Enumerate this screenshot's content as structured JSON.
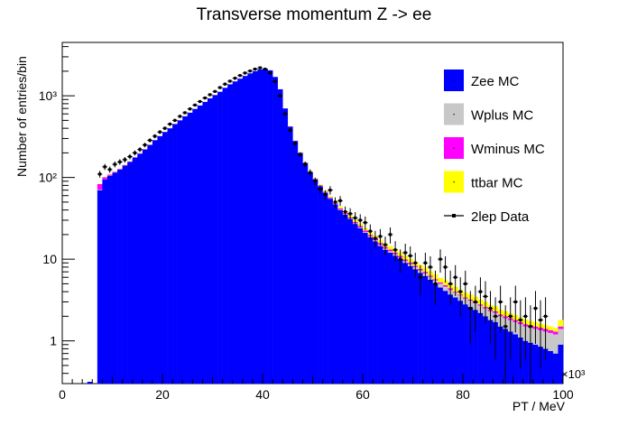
{
  "chart_data": {
    "type": "bar",
    "title": "Transverse momentum Z -> ee",
    "xlabel": "PT / MeV",
    "ylabel": "Number of entries/bin",
    "x_exponent": "×10³",
    "xlim": [
      0,
      100
    ],
    "ylim": [
      0.3,
      4500
    ],
    "y_scale": "log",
    "bin_width": 1,
    "x_ticks": [
      "0",
      "20",
      "40",
      "60",
      "80",
      "100"
    ],
    "y_ticks": [
      {
        "value": 1,
        "label": "1"
      },
      {
        "value": 10,
        "label": "10"
      },
      {
        "value": 100,
        "label": "10²"
      },
      {
        "value": 1000,
        "label": "10³"
      }
    ],
    "legend_position": "top-right",
    "series": [
      {
        "name": "Zee MC",
        "color": "#0000ff",
        "kind": "stacked-histogram"
      },
      {
        "name": "Wplus MC",
        "color": "#c8c8c8",
        "kind": "stacked-histogram"
      },
      {
        "name": "Wminus MC",
        "color": "#ff00ff",
        "kind": "stacked-histogram"
      },
      {
        "name": "ttbar MC",
        "color": "#ffff00",
        "kind": "stacked-histogram"
      },
      {
        "name": "2lep Data",
        "color": "#000000",
        "kind": "points-with-errors"
      }
    ],
    "bins_x": [
      7,
      8,
      9,
      10,
      11,
      12,
      13,
      14,
      15,
      16,
      17,
      18,
      19,
      20,
      21,
      22,
      23,
      24,
      25,
      26,
      27,
      28,
      29,
      30,
      31,
      32,
      33,
      34,
      35,
      36,
      37,
      38,
      39,
      40,
      41,
      42,
      43,
      44,
      45,
      46,
      47,
      48,
      49,
      50,
      51,
      52,
      53,
      54,
      55,
      56,
      57,
      58,
      59,
      60,
      61,
      62,
      63,
      64,
      65,
      66,
      67,
      68,
      69,
      70,
      71,
      72,
      73,
      74,
      75,
      76,
      77,
      78,
      79,
      80,
      81,
      82,
      83,
      84,
      85,
      86,
      87,
      88,
      89,
      90,
      91,
      92,
      93,
      94,
      95,
      96,
      97,
      98,
      99
    ],
    "zee_mc": [
      70,
      95,
      105,
      115,
      125,
      140,
      155,
      175,
      195,
      220,
      250,
      285,
      320,
      360,
      400,
      450,
      500,
      560,
      620,
      690,
      760,
      840,
      930,
      1020,
      1120,
      1250,
      1380,
      1500,
      1620,
      1750,
      1880,
      2000,
      2100,
      2150,
      2050,
      1700,
      1200,
      700,
      420,
      280,
      200,
      150,
      115,
      95,
      78,
      65,
      55,
      47,
      40,
      35,
      31,
      27,
      24,
      21,
      18.5,
      16.5,
      14.5,
      13,
      12,
      11,
      10,
      9,
      8.2,
      7.5,
      6.8,
      6.2,
      5.6,
      5,
      4.5,
      4.1,
      3.7,
      3.4,
      3.1,
      2.8,
      2.6,
      2.4,
      2.2,
      2,
      1.8,
      1.7,
      1.5,
      1.4,
      1.3,
      1.2,
      1.1,
      1,
      0.95,
      0.9,
      0.85,
      0.8,
      0.75,
      0.7,
      0.9
    ],
    "wplus_mc": [
      1,
      0.5,
      0.5,
      0.5,
      0.5,
      0.5,
      0.5,
      0.5,
      0.5,
      0.5,
      0.5,
      0.5,
      0.5,
      0.5,
      0.5,
      0.5,
      0.5,
      0.5,
      0.5,
      0.5,
      0.5,
      0.5,
      0.5,
      0.5,
      0.5,
      0.5,
      0.5,
      0.5,
      0.5,
      0.5,
      0.5,
      0.5,
      0.5,
      0.5,
      0.5,
      0.5,
      0.5,
      0.5,
      0.5,
      0.5,
      0.5,
      0.5,
      0.5,
      0.5,
      0.5,
      0.5,
      0.5,
      0.5,
      0.5,
      0.5,
      0.5,
      0.5,
      0.5,
      0.5,
      0.5,
      0.5,
      0.5,
      0.5,
      0.5,
      0.5,
      0.5,
      0.5,
      0.5,
      0.5,
      0.5,
      0.5,
      0.5,
      0.5,
      0.5,
      0.5,
      0.5,
      0.5,
      0.5,
      0.5,
      0.5,
      0.5,
      0.5,
      0.5,
      0.5,
      0.5,
      0.5,
      0.5,
      0.5,
      0.5,
      0.5,
      0.5,
      0.5,
      0.5,
      0.5,
      0.5,
      0.5,
      0.5,
      0.5
    ],
    "wminus_mc": [
      12,
      5,
      3,
      2,
      2,
      2,
      2,
      2,
      2,
      2,
      2,
      2,
      2,
      2,
      2,
      2,
      2,
      2,
      2,
      2,
      2,
      2,
      2,
      2,
      2,
      2,
      2,
      2,
      2,
      2,
      2,
      2,
      2,
      2,
      2,
      2,
      2,
      2,
      2,
      2,
      2,
      2,
      1.5,
      1.5,
      1.5,
      1.5,
      1.5,
      1.2,
      1.2,
      1.2,
      1,
      1,
      1,
      1,
      0.8,
      0.8,
      0.8,
      0.6,
      0.6,
      0.5,
      0.5,
      0.4,
      0.4,
      0.3,
      0.3,
      0.3,
      0.2,
      0.2,
      0.2,
      0.2,
      0.2,
      0.1,
      0.1,
      0.1,
      0.1,
      0.1,
      0.1,
      0.1,
      0.1,
      0.1,
      0.1,
      0.1,
      0.1,
      0.1,
      0.1,
      0.1,
      0.1,
      0.1,
      0.1,
      0.1,
      0.1,
      0.1,
      0.1
    ],
    "ttbar_mc": [
      1,
      1,
      1,
      1,
      1,
      1,
      1,
      1,
      1,
      1,
      1,
      1,
      1,
      1,
      1,
      1,
      1,
      1,
      1,
      1,
      1,
      1,
      1,
      1,
      1,
      1,
      1,
      1,
      1,
      1,
      1,
      1,
      1,
      1,
      1,
      1,
      1,
      1,
      2,
      2,
      2,
      2,
      2,
      2,
      2,
      2,
      2,
      2,
      2,
      2,
      2,
      1.8,
      1.8,
      1.6,
      1.6,
      1.5,
      1.5,
      1.4,
      1.3,
      1.2,
      1.2,
      1.1,
      1,
      1,
      0.9,
      0.9,
      0.8,
      0.8,
      0.7,
      0.7,
      0.6,
      0.6,
      0.5,
      0.5,
      0.5,
      0.45,
      0.4,
      0.4,
      0.35,
      0.35,
      0.3,
      0.3,
      0.28,
      0.26,
      0.24,
      0.22,
      0.2,
      0.2,
      0.18,
      0.16,
      0.15,
      0.14,
      0.3
    ],
    "data_points": [
      {
        "x": 7.5,
        "y": 110
      },
      {
        "x": 8.5,
        "y": 135
      },
      {
        "x": 9.5,
        "y": 125
      },
      {
        "x": 10.5,
        "y": 145
      },
      {
        "x": 11.5,
        "y": 155
      },
      {
        "x": 12.5,
        "y": 165
      },
      {
        "x": 13.5,
        "y": 180
      },
      {
        "x": 14.5,
        "y": 200
      },
      {
        "x": 15.5,
        "y": 220
      },
      {
        "x": 16.5,
        "y": 250
      },
      {
        "x": 17.5,
        "y": 285
      },
      {
        "x": 18.5,
        "y": 320
      },
      {
        "x": 19.5,
        "y": 360
      },
      {
        "x": 20.5,
        "y": 400
      },
      {
        "x": 21.5,
        "y": 450
      },
      {
        "x": 22.5,
        "y": 500
      },
      {
        "x": 23.5,
        "y": 560
      },
      {
        "x": 24.5,
        "y": 620
      },
      {
        "x": 25.5,
        "y": 690
      },
      {
        "x": 26.5,
        "y": 770
      },
      {
        "x": 27.5,
        "y": 850
      },
      {
        "x": 28.5,
        "y": 940
      },
      {
        "x": 29.5,
        "y": 1030
      },
      {
        "x": 30.5,
        "y": 1130
      },
      {
        "x": 31.5,
        "y": 1260
      },
      {
        "x": 32.5,
        "y": 1390
      },
      {
        "x": 33.5,
        "y": 1510
      },
      {
        "x": 34.5,
        "y": 1640
      },
      {
        "x": 35.5,
        "y": 1770
      },
      {
        "x": 36.5,
        "y": 1900
      },
      {
        "x": 37.5,
        "y": 2010
      },
      {
        "x": 38.5,
        "y": 2120
      },
      {
        "x": 39.5,
        "y": 2200
      },
      {
        "x": 40.5,
        "y": 2120
      },
      {
        "x": 41.5,
        "y": 1900
      },
      {
        "x": 42.5,
        "y": 1500
      },
      {
        "x": 43.5,
        "y": 1000
      },
      {
        "x": 44.5,
        "y": 600
      },
      {
        "x": 45.5,
        "y": 380
      },
      {
        "x": 46.5,
        "y": 260
      },
      {
        "x": 47.5,
        "y": 190
      },
      {
        "x": 48.5,
        "y": 145
      },
      {
        "x": 49.5,
        "y": 115
      },
      {
        "x": 50.5,
        "y": 90
      },
      {
        "x": 51.5,
        "y": 72
      },
      {
        "x": 52.5,
        "y": 62
      },
      {
        "x": 53.5,
        "y": 70
      },
      {
        "x": 54.5,
        "y": 50
      },
      {
        "x": 55.5,
        "y": 52
      },
      {
        "x": 56.5,
        "y": 38
      },
      {
        "x": 57.5,
        "y": 36
      },
      {
        "x": 58.5,
        "y": 32
      },
      {
        "x": 59.5,
        "y": 30
      },
      {
        "x": 60.5,
        "y": 28
      },
      {
        "x": 61.5,
        "y": 22
      },
      {
        "x": 62.5,
        "y": 18
      },
      {
        "x": 63.5,
        "y": 19
      },
      {
        "x": 64.5,
        "y": 15
      },
      {
        "x": 65.5,
        "y": 20
      },
      {
        "x": 66.5,
        "y": 13
      },
      {
        "x": 67.5,
        "y": 10
      },
      {
        "x": 68.5,
        "y": 12
      },
      {
        "x": 69.5,
        "y": 11
      },
      {
        "x": 70.5,
        "y": 9
      },
      {
        "x": 71.5,
        "y": 6
      },
      {
        "x": 72.5,
        "y": 9
      },
      {
        "x": 73.5,
        "y": 8
      },
      {
        "x": 74.5,
        "y": 5
      },
      {
        "x": 75.5,
        "y": 10
      },
      {
        "x": 76.5,
        "y": 8
      },
      {
        "x": 77.5,
        "y": 5
      },
      {
        "x": 78.5,
        "y": 6
      },
      {
        "x": 79.5,
        "y": 4
      },
      {
        "x": 80.5,
        "y": 5
      },
      {
        "x": 81.5,
        "y": 2.5
      },
      {
        "x": 82.5,
        "y": 3
      },
      {
        "x": 83.5,
        "y": 4
      },
      {
        "x": 84.5,
        "y": 3.5
      },
      {
        "x": 85.5,
        "y": 2.5
      },
      {
        "x": 86.5,
        "y": 2
      },
      {
        "x": 87.5,
        "y": 3
      },
      {
        "x": 88.5,
        "y": 1.5
      },
      {
        "x": 89.5,
        "y": 2
      },
      {
        "x": 90.5,
        "y": 3
      },
      {
        "x": 91.5,
        "y": 1.8
      },
      {
        "x": 92.5,
        "y": 2
      },
      {
        "x": 93.5,
        "y": 1.5
      },
      {
        "x": 94.5,
        "y": 2.5
      },
      {
        "x": 95.5,
        "y": 1.8
      },
      {
        "x": 96.5,
        "y": 2
      }
    ]
  }
}
